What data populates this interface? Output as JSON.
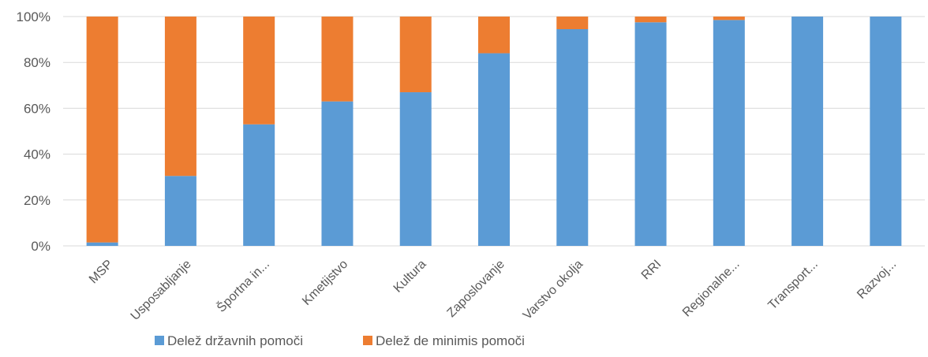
{
  "chart_data": {
    "type": "bar",
    "stacked": "percent",
    "categories": [
      "MSP",
      "Usposabljanje",
      "Športna in...",
      "Kmetijstvo",
      "Kultura",
      "Zaposlovanje",
      "Varstvo okolja",
      "RRI",
      "Regionalne...",
      "Transport...",
      "Razvoj..."
    ],
    "series": [
      {
        "name": "Delež državnih pomoči",
        "color": "#5B9BD5",
        "values": [
          1.5,
          30.5,
          53,
          63,
          67,
          84,
          94.5,
          97.5,
          98.5,
          100,
          100
        ]
      },
      {
        "name": "Delež de minimis pomoči",
        "color": "#ED7D31",
        "values": [
          98.5,
          69.5,
          47,
          37,
          33,
          16,
          5.5,
          2.5,
          1.5,
          0,
          0
        ]
      }
    ],
    "yticks": [
      "0%",
      "20%",
      "40%",
      "60%",
      "80%",
      "100%"
    ],
    "ylim": [
      0,
      100
    ],
    "grid": true,
    "legend_position": "bottom",
    "gridline_color": "#D9D9D9"
  }
}
